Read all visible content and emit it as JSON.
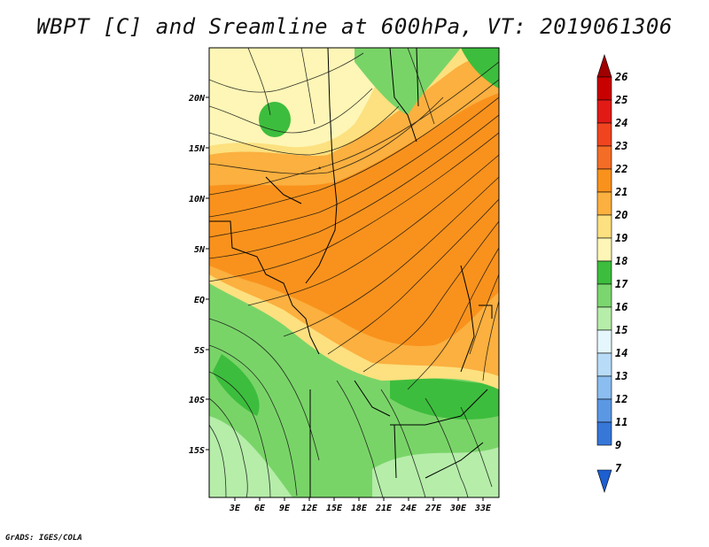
{
  "title": "WBPT [C] and Sreamline at 600hPa, VT: 2019061306",
  "footer": "GrADS: IGES/COLA",
  "map": {
    "lat_labels": [
      "20N",
      "15N",
      "10N",
      "5N",
      "EQ",
      "5S",
      "10S",
      "15S"
    ],
    "lon_labels": [
      "3E",
      "6E",
      "9E",
      "12E",
      "15E",
      "18E",
      "21E",
      "24E",
      "27E",
      "30E",
      "33E"
    ]
  },
  "colorbar": {
    "levels": [
      "26",
      "25",
      "24",
      "23",
      "22",
      "21",
      "20",
      "19",
      "18",
      "17",
      "16",
      "15",
      "14",
      "13",
      "12",
      "11",
      "9",
      "7"
    ],
    "colors": [
      "#a00000",
      "#c80000",
      "#e11a16",
      "#f0441f",
      "#f46d26",
      "#f9921c",
      "#fbb03f",
      "#fde07f",
      "#fdf6b6",
      "#3dbd3d",
      "#7bd66f",
      "#b5eda9",
      "#e5f7fc",
      "#b8dcf8",
      "#8bbdf0",
      "#5b98e4",
      "#3677d8",
      "#1e5fd1"
    ]
  }
}
